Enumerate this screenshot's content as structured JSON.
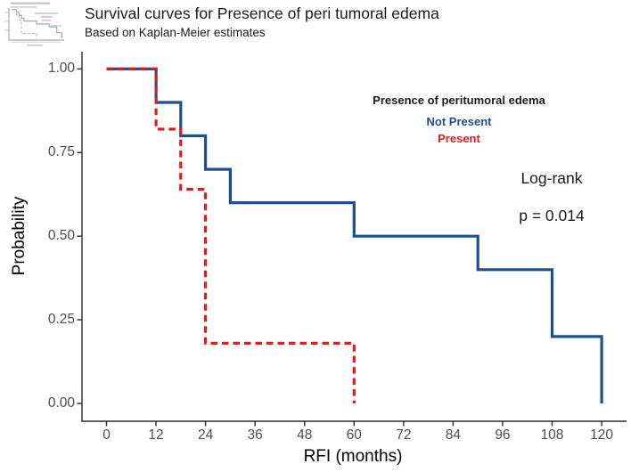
{
  "header": {
    "title": "Survival curves for Presence of peri tumoral edema",
    "subtitle": "Based on Kaplan-Meier estimates"
  },
  "legend": {
    "title": "Presence of peritumoral edema",
    "items": [
      {
        "label": "Not Present",
        "color": "#1d4f91"
      },
      {
        "label": "Present",
        "color": "#e41a1c"
      }
    ]
  },
  "annotation": {
    "test_name": "Log-rank",
    "p_value_text": "p = 0.014"
  },
  "chart_data": {
    "type": "line",
    "subtype": "kaplan-meier-step",
    "title": "Survival curves for Presence of peri tumoral edema",
    "subtitle": "Based on Kaplan-Meier estimates",
    "xlabel": "RFI (months)",
    "ylabel": "Probability",
    "xlim": [
      0,
      120
    ],
    "ylim": [
      0.0,
      1.0
    ],
    "x_ticks": [
      0,
      12,
      24,
      36,
      48,
      60,
      72,
      84,
      96,
      108,
      120
    ],
    "y_ticks": [
      "0.00",
      "0.25",
      "0.50",
      "0.75",
      "1.00"
    ],
    "grid": false,
    "legend_position": "inside-top-center-right",
    "series": [
      {
        "name": "Not Present",
        "color": "#1d4f91",
        "style": "solid",
        "points": [
          [
            0,
            1.0
          ],
          [
            12,
            0.9
          ],
          [
            18,
            0.8
          ],
          [
            24,
            0.7
          ],
          [
            30,
            0.6
          ],
          [
            60,
            0.5
          ],
          [
            90,
            0.4
          ],
          [
            108,
            0.2
          ],
          [
            120,
            0.0
          ]
        ]
      },
      {
        "name": "Present",
        "color": "#e41a1c",
        "style": "dashed",
        "points": [
          [
            0,
            1.0
          ],
          [
            12,
            0.82
          ],
          [
            18,
            0.64
          ],
          [
            24,
            0.18
          ],
          [
            60,
            0.0
          ]
        ]
      }
    ],
    "stats": {
      "test": "Log-rank",
      "p_value": "0.014"
    }
  }
}
